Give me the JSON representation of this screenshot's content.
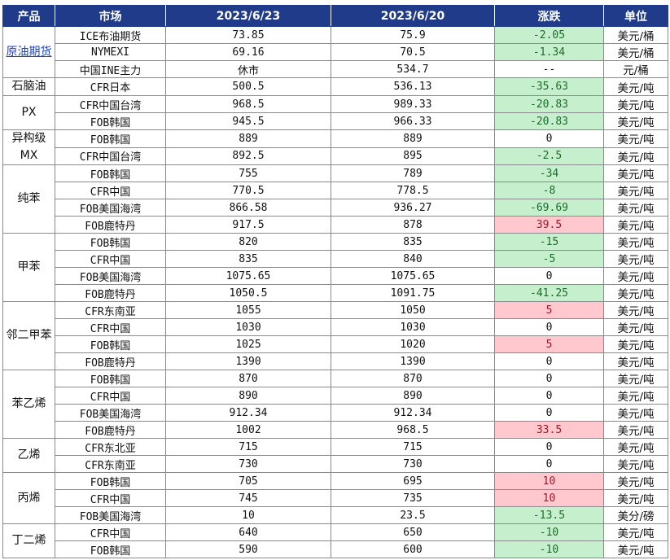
{
  "headers": [
    "产品",
    "市场",
    "2023/6/23",
    "2023/6/20",
    "涨跌",
    "单位"
  ],
  "colors": {
    "header_bg": "#1f3b8a",
    "down_bg": "#c6efce",
    "up_bg": "#ffc7ce",
    "link": "#1a3fd6"
  },
  "groups": [
    {
      "product": "原油期货",
      "link": true,
      "rows": [
        {
          "market": "ICE布油期货",
          "d1": "73.85",
          "d2": "75.9",
          "change": "-2.05",
          "trend": "down",
          "unit": "美元/桶"
        },
        {
          "market": "NYMEXI",
          "d1": "69.16",
          "d2": "70.5",
          "change": "-1.34",
          "trend": "down",
          "unit": "美元/桶"
        },
        {
          "market": "中国INE主力",
          "d1": "休市",
          "d2": "534.7",
          "change": "--",
          "trend": "flat",
          "unit": "元/桶"
        }
      ]
    },
    {
      "product": "石脑油",
      "rows": [
        {
          "market": "CFR日本",
          "d1": "500.5",
          "d2": "536.13",
          "change": "-35.63",
          "trend": "down",
          "unit": "美元/吨"
        }
      ]
    },
    {
      "product": "PX",
      "rows": [
        {
          "market": "CFR中国台湾",
          "d1": "968.5",
          "d2": "989.33",
          "change": "-20.83",
          "trend": "down",
          "unit": "美元/吨"
        },
        {
          "market": "FOB韩国",
          "d1": "945.5",
          "d2": "966.33",
          "change": "-20.83",
          "trend": "down",
          "unit": "美元/吨"
        }
      ]
    },
    {
      "product": "异构级MX",
      "rows": [
        {
          "market": "FOB韩国",
          "d1": "889",
          "d2": "889",
          "change": "0",
          "trend": "flat",
          "unit": "美元/吨"
        },
        {
          "market": "CFR中国台湾",
          "d1": "892.5",
          "d2": "895",
          "change": "-2.5",
          "trend": "down",
          "unit": "美元/吨"
        }
      ]
    },
    {
      "product": "纯苯",
      "rows": [
        {
          "market": "FOB韩国",
          "d1": "755",
          "d2": "789",
          "change": "-34",
          "trend": "down",
          "unit": "美元/吨"
        },
        {
          "market": "CFR中国",
          "d1": "770.5",
          "d2": "778.5",
          "change": "-8",
          "trend": "down",
          "unit": "美元/吨"
        },
        {
          "market": "FOB美国海湾",
          "d1": "866.58",
          "d2": "936.27",
          "change": "-69.69",
          "trend": "down",
          "unit": "美元/吨"
        },
        {
          "market": "FOB鹿特丹",
          "d1": "917.5",
          "d2": "878",
          "change": "39.5",
          "trend": "up",
          "unit": "美元/吨"
        }
      ]
    },
    {
      "product": "甲苯",
      "rows": [
        {
          "market": "FOB韩国",
          "d1": "820",
          "d2": "835",
          "change": "-15",
          "trend": "down",
          "unit": "美元/吨"
        },
        {
          "market": "CFR中国",
          "d1": "835",
          "d2": "840",
          "change": "-5",
          "trend": "down",
          "unit": "美元/吨"
        },
        {
          "market": "FOB美国海湾",
          "d1": "1075.65",
          "d2": "1075.65",
          "change": "0",
          "trend": "flat",
          "unit": "美元/吨"
        },
        {
          "market": "FOB鹿特丹",
          "d1": "1050.5",
          "d2": "1091.75",
          "change": "-41.25",
          "trend": "down",
          "unit": "美元/吨"
        }
      ]
    },
    {
      "product": "邻二甲苯",
      "rows": [
        {
          "market": "CFR东南亚",
          "d1": "1055",
          "d2": "1050",
          "change": "5",
          "trend": "up",
          "unit": "美元/吨"
        },
        {
          "market": "CFR中国",
          "d1": "1030",
          "d2": "1030",
          "change": "0",
          "trend": "flat",
          "unit": "美元/吨"
        },
        {
          "market": "FOB韩国",
          "d1": "1025",
          "d2": "1020",
          "change": "5",
          "trend": "up",
          "unit": "美元/吨"
        },
        {
          "market": "FOB鹿特丹",
          "d1": "1390",
          "d2": "1390",
          "change": "0",
          "trend": "flat",
          "unit": "美元/吨"
        }
      ]
    },
    {
      "product": "苯乙烯",
      "rows": [
        {
          "market": "FOB韩国",
          "d1": "870",
          "d2": "870",
          "change": "0",
          "trend": "flat",
          "unit": "美元/吨"
        },
        {
          "market": "CFR中国",
          "d1": "890",
          "d2": "890",
          "change": "0",
          "trend": "flat",
          "unit": "美元/吨"
        },
        {
          "market": "FOB美国海湾",
          "d1": "912.34",
          "d2": "912.34",
          "change": "0",
          "trend": "flat",
          "unit": "美元/吨"
        },
        {
          "market": "FOB鹿特丹",
          "d1": "1002",
          "d2": "968.5",
          "change": "33.5",
          "trend": "up",
          "unit": "美元/吨"
        }
      ]
    },
    {
      "product": "乙烯",
      "rows": [
        {
          "market": "CFR东北亚",
          "d1": "715",
          "d2": "715",
          "change": "0",
          "trend": "flat",
          "unit": "美元/吨"
        },
        {
          "market": "CFR东南亚",
          "d1": "730",
          "d2": "730",
          "change": "0",
          "trend": "flat",
          "unit": "美元/吨"
        }
      ]
    },
    {
      "product": "丙烯",
      "rows": [
        {
          "market": "FOB韩国",
          "d1": "705",
          "d2": "695",
          "change": "10",
          "trend": "up",
          "unit": "美元/吨"
        },
        {
          "market": "CFR中国",
          "d1": "745",
          "d2": "735",
          "change": "10",
          "trend": "up",
          "unit": "美元/吨"
        },
        {
          "market": "FOB美国海湾",
          "d1": "10",
          "d2": "23.5",
          "change": "-13.5",
          "trend": "down",
          "unit": "美分/磅"
        }
      ]
    },
    {
      "product": "丁二烯",
      "rows": [
        {
          "market": "CFR中国",
          "d1": "640",
          "d2": "650",
          "change": "-10",
          "trend": "down",
          "unit": "美元/吨"
        },
        {
          "market": "FOB韩国",
          "d1": "590",
          "d2": "600",
          "change": "-10",
          "trend": "down",
          "unit": "美元/吨"
        }
      ]
    }
  ]
}
